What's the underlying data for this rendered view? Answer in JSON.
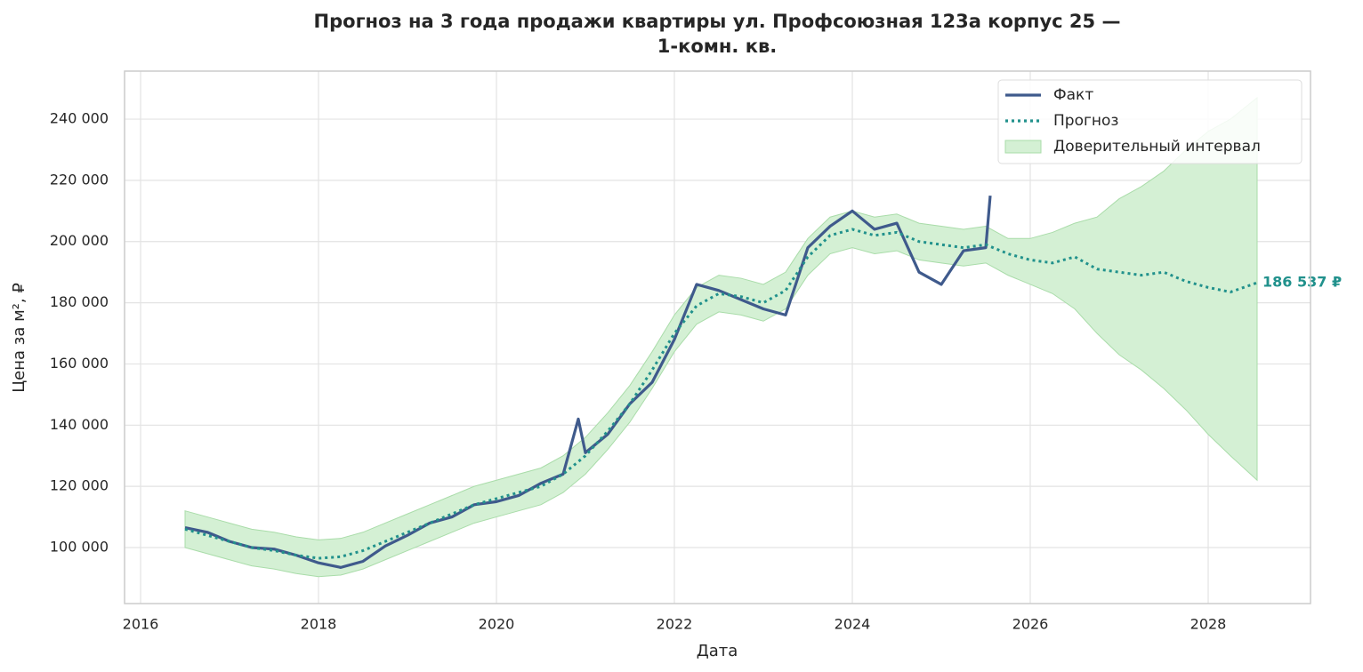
{
  "chart_data": {
    "type": "line",
    "title": [
      "Прогноз на 3 года продажи квартиры  ул. Профсоюзная 123а корпус 25 —",
      "1-комн. кв."
    ],
    "x_label": "Дата",
    "y_label": "Цена за м², ₽",
    "xlim": [
      2015.82,
      2029.15
    ],
    "xticks": [
      2016,
      2018,
      2020,
      2022,
      2024,
      2026,
      2028
    ],
    "ylim": [
      81700,
      255700
    ],
    "yticks": [
      {
        "value": 100000,
        "label": "100 000"
      },
      {
        "value": 120000,
        "label": "120 000"
      },
      {
        "value": 140000,
        "label": "140 000"
      },
      {
        "value": 160000,
        "label": "160 000"
      },
      {
        "value": 180000,
        "label": "180 000"
      },
      {
        "value": 200000,
        "label": "200 000"
      },
      {
        "value": 220000,
        "label": "220 000"
      },
      {
        "value": 240000,
        "label": "240 000"
      }
    ],
    "grid": true,
    "legend": "upper right",
    "series": [
      {
        "name": "Факт",
        "kind": "line",
        "color": "#3f5a8c",
        "x": [
          2016.5,
          2016.75,
          2017.0,
          2017.25,
          2017.5,
          2017.75,
          2018.0,
          2018.25,
          2018.5,
          2018.75,
          2019.0,
          2019.25,
          2019.5,
          2019.75,
          2020.0,
          2020.25,
          2020.5,
          2020.75,
          2020.92,
          2021.0,
          2021.25,
          2021.5,
          2021.75,
          2022.0,
          2022.25,
          2022.5,
          2022.75,
          2023.0,
          2023.25,
          2023.5,
          2023.75,
          2024.0,
          2024.25,
          2024.5,
          2024.75,
          2025.0,
          2025.25,
          2025.5,
          2025.55
        ],
        "values": [
          106500,
          105000,
          102000,
          100000,
          99500,
          97500,
          95000,
          93500,
          95500,
          100500,
          104000,
          108000,
          110000,
          114000,
          115000,
          117000,
          121000,
          124000,
          142000,
          131000,
          137000,
          147000,
          154000,
          168000,
          186000,
          184000,
          181000,
          178000,
          176000,
          198000,
          205000,
          210000,
          204000,
          206000,
          190000,
          186000,
          197000,
          198000,
          215000
        ]
      },
      {
        "name": "Прогноз",
        "kind": "dotted",
        "color": "#21918c",
        "x": [
          2016.5,
          2016.75,
          2017.0,
          2017.25,
          2017.5,
          2017.75,
          2018.0,
          2018.25,
          2018.5,
          2018.75,
          2019.0,
          2019.25,
          2019.5,
          2019.75,
          2020.0,
          2020.25,
          2020.5,
          2020.75,
          2021.0,
          2021.25,
          2021.5,
          2021.75,
          2022.0,
          2022.25,
          2022.5,
          2022.75,
          2023.0,
          2023.25,
          2023.5,
          2023.75,
          2024.0,
          2024.25,
          2024.5,
          2024.75,
          2025.0,
          2025.25,
          2025.5,
          2025.75,
          2026.0,
          2026.25,
          2026.5,
          2026.75,
          2027.0,
          2027.25,
          2027.5,
          2027.75,
          2028.0,
          2028.25,
          2028.55
        ],
        "values": [
          106000,
          104000,
          102000,
          100000,
          99000,
          97500,
          96500,
          97000,
          99000,
          102000,
          105000,
          108000,
          111000,
          114000,
          116000,
          118000,
          120000,
          124000,
          130000,
          138000,
          147000,
          158000,
          170000,
          179000,
          183000,
          182000,
          180000,
          184000,
          195000,
          202000,
          204000,
          202000,
          203000,
          200000,
          199000,
          198000,
          199000,
          196000,
          194000,
          193000,
          195000,
          191000,
          190000,
          189000,
          190000,
          187000,
          185000,
          183500,
          186537
        ],
        "end_label": "186 537 ₽"
      },
      {
        "name": "Доверительный интервал",
        "kind": "band",
        "color": "#d4f0d4",
        "edge": "#a9dca9",
        "x": [
          2016.5,
          2016.75,
          2017.0,
          2017.25,
          2017.5,
          2017.75,
          2018.0,
          2018.25,
          2018.5,
          2018.75,
          2019.0,
          2019.25,
          2019.5,
          2019.75,
          2020.0,
          2020.25,
          2020.5,
          2020.75,
          2021.0,
          2021.25,
          2021.5,
          2021.75,
          2022.0,
          2022.25,
          2022.5,
          2022.75,
          2023.0,
          2023.25,
          2023.5,
          2023.75,
          2024.0,
          2024.25,
          2024.5,
          2024.75,
          2025.0,
          2025.25,
          2025.5,
          2025.75,
          2026.0,
          2026.25,
          2026.5,
          2026.75,
          2027.0,
          2027.25,
          2027.5,
          2027.75,
          2028.0,
          2028.25,
          2028.55
        ],
        "lower": [
          100000,
          98000,
          96000,
          94000,
          93000,
          91500,
          90500,
          91000,
          93000,
          96000,
          99000,
          102000,
          105000,
          108000,
          110000,
          112000,
          114000,
          118000,
          124000,
          132000,
          141000,
          152000,
          164000,
          173000,
          177000,
          176000,
          174000,
          178000,
          189000,
          196000,
          198000,
          196000,
          197000,
          194000,
          193000,
          192000,
          193000,
          189000,
          186000,
          183000,
          178000,
          170000,
          163000,
          158000,
          152000,
          145000,
          137000,
          130000,
          122000
        ],
        "upper": [
          112000,
          110000,
          108000,
          106000,
          105000,
          103500,
          102500,
          103000,
          105000,
          108000,
          111000,
          114000,
          117000,
          120000,
          122000,
          124000,
          126000,
          130000,
          136000,
          144000,
          153000,
          164000,
          176000,
          185000,
          189000,
          188000,
          186000,
          190000,
          201000,
          208000,
          210000,
          208000,
          209000,
          206000,
          205000,
          204000,
          205000,
          201000,
          201000,
          203000,
          206000,
          208000,
          214000,
          218000,
          223000,
          230000,
          236000,
          240000,
          247000
        ]
      }
    ]
  }
}
